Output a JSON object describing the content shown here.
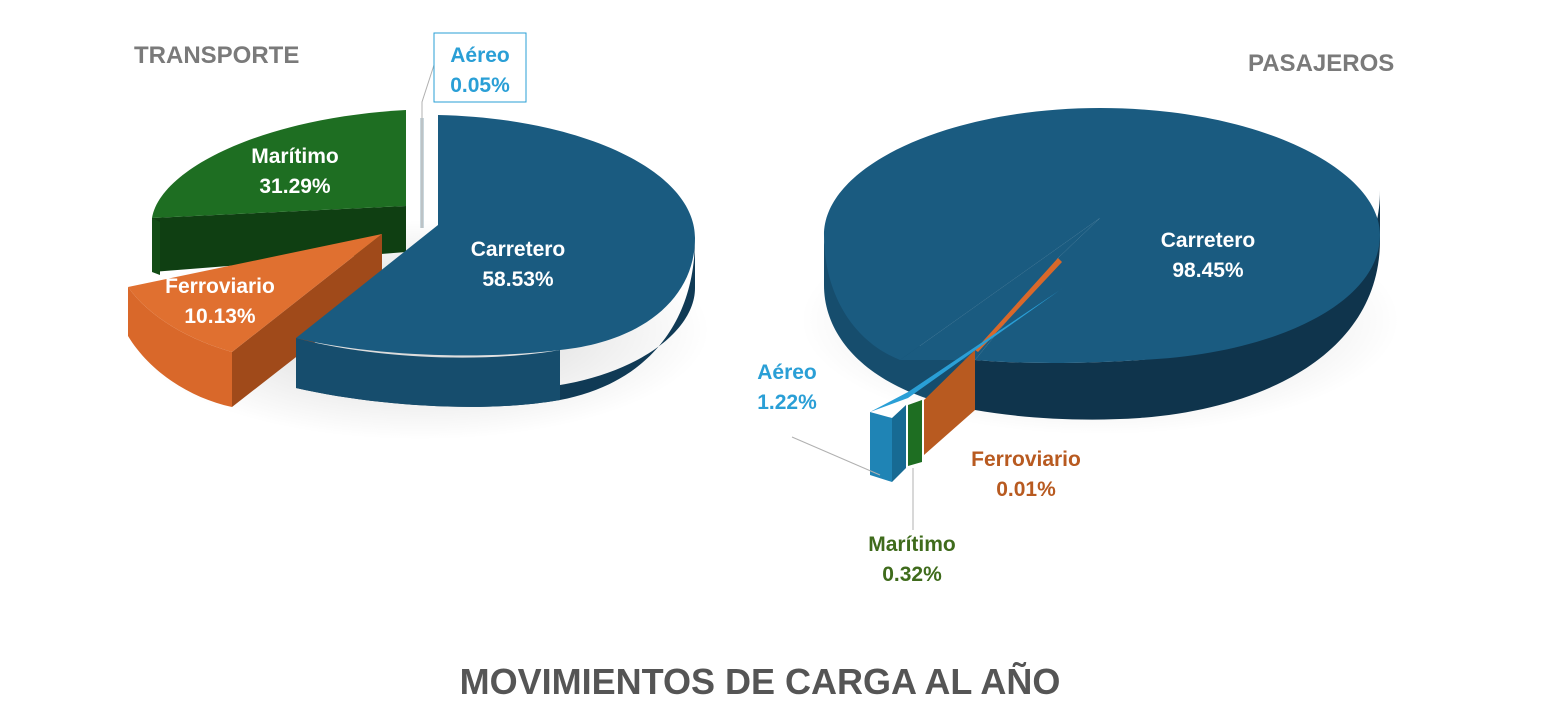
{
  "main_title": "MOVIMIENTOS DE CARGA AL AÑO",
  "chart_data": [
    {
      "type": "pie",
      "title": "TRANSPORTE",
      "categories": [
        "Carretero",
        "Marítimo",
        "Ferroviario",
        "Aéreo"
      ],
      "values": [
        58.53,
        31.29,
        10.13,
        0.05
      ],
      "labels": [
        "58.53%",
        "31.29%",
        "10.13%",
        "0.05%"
      ],
      "colors": [
        "#1a5b80",
        "#1e6e22",
        "#e07030",
        "#2a9fd6"
      ],
      "legend": "none"
    },
    {
      "type": "pie",
      "title": "PASAJEROS",
      "categories": [
        "Carretero",
        "Aéreo",
        "Marítimo",
        "Ferroviario"
      ],
      "values": [
        98.45,
        1.22,
        0.32,
        0.01
      ],
      "labels": [
        "98.45%",
        "1.22%",
        "0.32%",
        "0.01%"
      ],
      "colors": [
        "#1a5b80",
        "#2a9fd6",
        "#1e6e22",
        "#b85a20"
      ],
      "legend": "none"
    }
  ]
}
